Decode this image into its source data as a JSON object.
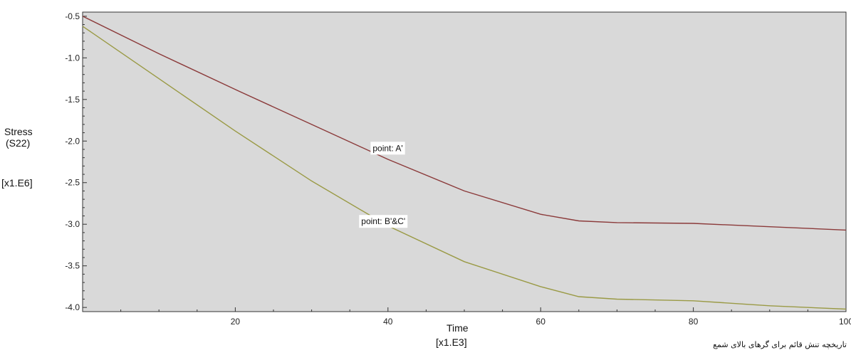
{
  "chart_data": {
    "type": "line",
    "ylabel_lines": [
      "Stress",
      "(S22)",
      "[x1.E6]"
    ],
    "xlabel_lines": [
      "Time",
      "[x1.E3]"
    ],
    "xlim": [
      0,
      100
    ],
    "ylim": [
      -4.05,
      -0.45
    ],
    "xticks": [
      20,
      40,
      60,
      80,
      100
    ],
    "xtick_labels": [
      "20",
      "40",
      "60",
      "80",
      "100"
    ],
    "yticks": [
      -0.5,
      -1.0,
      -1.5,
      -2.0,
      -2.5,
      -3.0,
      -3.5,
      -4.0
    ],
    "ytick_labels": [
      "-0.5",
      "-1.0",
      "-1.5",
      "-2.0",
      "-2.5",
      "-3.0",
      "-3.5",
      "-4.0"
    ],
    "series": [
      {
        "name": "point: A'",
        "color": "#8b3a3a",
        "x": [
          0,
          10,
          20,
          30,
          40,
          50,
          60,
          65,
          70,
          80,
          90,
          100
        ],
        "y": [
          -0.5,
          -0.95,
          -1.38,
          -1.8,
          -2.22,
          -2.6,
          -2.88,
          -2.96,
          -2.98,
          -2.99,
          -3.03,
          -3.07
        ]
      },
      {
        "name": "point: B'&C'",
        "color": "#9a9a45",
        "x": [
          0,
          10,
          20,
          30,
          40,
          50,
          60,
          65,
          70,
          80,
          90,
          100
        ],
        "y": [
          -0.62,
          -1.25,
          -1.88,
          -2.48,
          -3.02,
          -3.45,
          -3.75,
          -3.87,
          -3.9,
          -3.92,
          -3.98,
          -4.02
        ]
      }
    ],
    "grid": false,
    "plot_background": "#d9d9d9"
  },
  "caption": "تاریخچه تنش قائم برای گرهای بالای شمع"
}
